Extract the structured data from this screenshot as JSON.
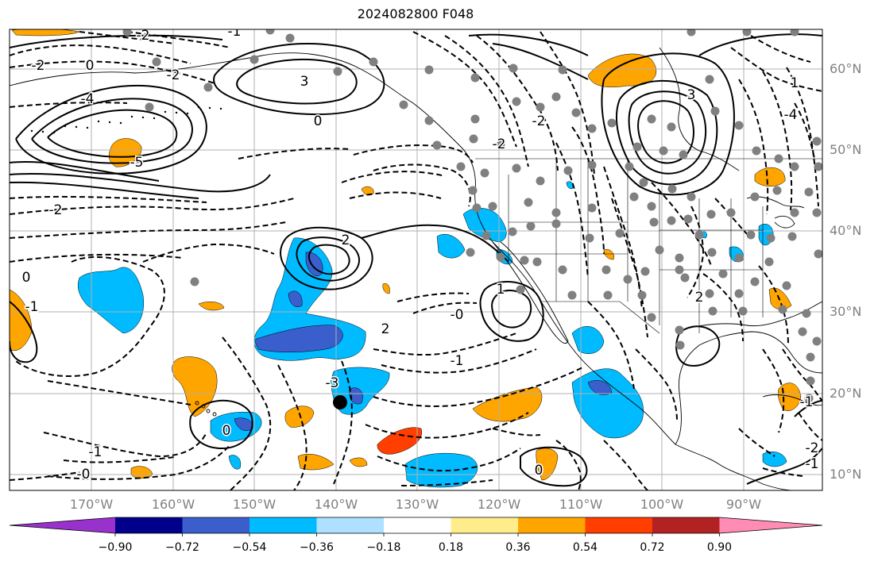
{
  "title": "2024082800 F048",
  "map": {
    "lat_labels": [
      "60°N",
      "50°N",
      "40°N",
      "30°N",
      "20°N",
      "10°N"
    ],
    "lon_labels": [
      "170°W",
      "160°W",
      "150°W",
      "140°W",
      "130°W",
      "120°W",
      "110°W",
      "100°W",
      "90°W"
    ],
    "contour_labels": [
      "-2",
      "-2",
      "-2",
      "2",
      "0",
      "-1",
      "-4",
      "-5",
      "3",
      "0",
      "-1",
      "0",
      "-2",
      "2",
      "-0",
      "-2",
      "-1",
      "-2",
      "-3",
      "0",
      "1",
      "2",
      "-1",
      "0",
      "-2",
      "-1",
      "-0",
      "-1",
      "1",
      "3",
      "-4"
    ],
    "colors": {
      "coast": "#000000",
      "grid": "#b0b0b0",
      "station": "#808080",
      "light_blue": "#aee0ff",
      "sky_blue": "#00bbff",
      "blue": "#3a5fcd",
      "navy": "#00008b",
      "orange": "#ffa500",
      "red_orange": "#ff3e00"
    }
  },
  "colorbar": {
    "tick_labels": [
      "−0.90",
      "−0.72",
      "−0.54",
      "−0.36",
      "−0.18",
      "0.18",
      "0.36",
      "0.54",
      "0.72",
      "0.90"
    ],
    "colors": [
      "#9932cc",
      "#00008b",
      "#3a5fcd",
      "#00bbff",
      "#aee0ff",
      "#ffffff",
      "#ffec8b",
      "#ffa500",
      "#ff3e00",
      "#b22222",
      "#ff8cb4"
    ]
  }
}
